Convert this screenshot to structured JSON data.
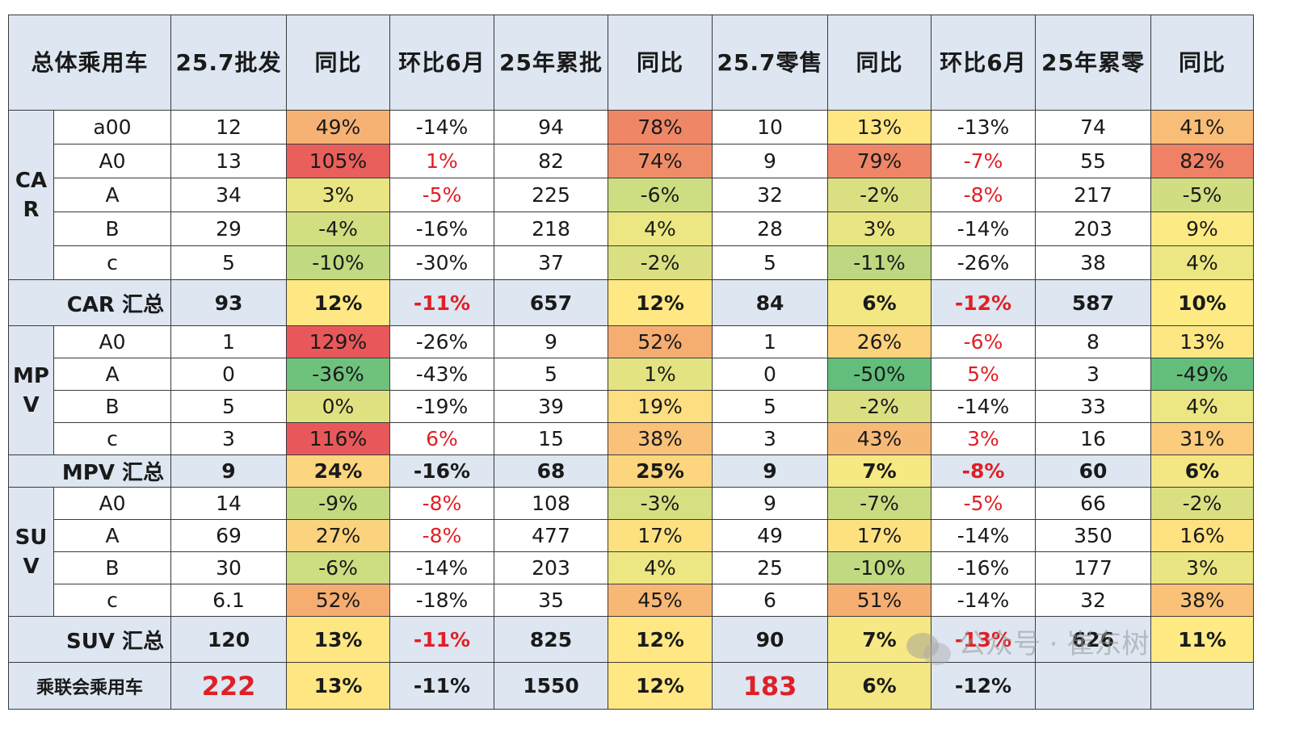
{
  "header": [
    "总体乘用车",
    "25.7批发",
    "同比",
    "环比6月",
    "25年累批",
    "同比",
    "25.7零售",
    "同比",
    "环比6月",
    "25年累零",
    "同比"
  ],
  "groups": [
    {
      "label": "CAR",
      "rows": [
        {
          "seg": "a00",
          "cells": [
            "12",
            "49%",
            "-14%",
            "94",
            "78%",
            "10",
            "13%",
            "-13%",
            "74",
            "41%"
          ]
        },
        {
          "seg": "A0",
          "cells": [
            "13",
            "105%",
            "1%",
            "82",
            "74%",
            "9",
            "79%",
            "-7%",
            "55",
            "82%"
          ]
        },
        {
          "seg": "A",
          "cells": [
            "34",
            "3%",
            "-5%",
            "225",
            "-6%",
            "32",
            "-2%",
            "-8%",
            "217",
            "-5%"
          ]
        },
        {
          "seg": "B",
          "cells": [
            "29",
            "-4%",
            "-16%",
            "218",
            "4%",
            "28",
            "3%",
            "-14%",
            "203",
            "9%"
          ]
        },
        {
          "seg": "c",
          "cells": [
            "5",
            "-10%",
            "-30%",
            "37",
            "-2%",
            "5",
            "-11%",
            "-26%",
            "38",
            "4%"
          ]
        }
      ],
      "total": {
        "label": "CAR 汇总",
        "cells": [
          "93",
          "12%",
          "-11%",
          "657",
          "12%",
          "84",
          "6%",
          "-12%",
          "587",
          "10%"
        ]
      }
    },
    {
      "label": "MPV",
      "rows": [
        {
          "seg": "A0",
          "cells": [
            "1",
            "129%",
            "-26%",
            "9",
            "52%",
            "1",
            "26%",
            "-6%",
            "8",
            "13%"
          ]
        },
        {
          "seg": "A",
          "cells": [
            "0",
            "-36%",
            "-43%",
            "5",
            "1%",
            "0",
            "-50%",
            "5%",
            "3",
            "-49%"
          ]
        },
        {
          "seg": "B",
          "cells": [
            "5",
            "0%",
            "-19%",
            "39",
            "19%",
            "5",
            "-2%",
            "-14%",
            "33",
            "4%"
          ]
        },
        {
          "seg": "c",
          "cells": [
            "3",
            "116%",
            "6%",
            "15",
            "38%",
            "3",
            "43%",
            "3%",
            "16",
            "31%"
          ]
        }
      ],
      "total": {
        "label": "MPV 汇总",
        "cells": [
          "9",
          "24%",
          "-16%",
          "68",
          "25%",
          "9",
          "7%",
          "-8%",
          "60",
          "6%"
        ]
      }
    },
    {
      "label": "SUV",
      "rows": [
        {
          "seg": "A0",
          "cells": [
            "14",
            "-9%",
            "-8%",
            "108",
            "-3%",
            "9",
            "-7%",
            "-5%",
            "66",
            "-2%"
          ]
        },
        {
          "seg": "A",
          "cells": [
            "69",
            "27%",
            "-8%",
            "477",
            "17%",
            "49",
            "17%",
            "-14%",
            "350",
            "16%"
          ]
        },
        {
          "seg": "B",
          "cells": [
            "30",
            "-6%",
            "-14%",
            "203",
            "4%",
            "25",
            "-10%",
            "-16%",
            "177",
            "3%"
          ]
        },
        {
          "seg": "c",
          "cells": [
            "6.1",
            "52%",
            "-18%",
            "35",
            "45%",
            "6",
            "51%",
            "-14%",
            "32",
            "38%"
          ]
        }
      ],
      "total": {
        "label": "SUV 汇总",
        "cells": [
          "120",
          "13%",
          "-11%",
          "825",
          "12%",
          "90",
          "7%",
          "-13%",
          "626",
          "11%"
        ]
      }
    }
  ],
  "grand_total": {
    "label": "乘联会乘用车",
    "cells": [
      "222",
      "13%",
      "-11%",
      "1550",
      "12%",
      "183",
      "6%",
      "-12%",
      "",
      ""
    ]
  },
  "watermark": "公众号 · 崔东树",
  "colors": {
    "header_bg": "#dde6f1",
    "negative_text": "#e01f26",
    "heat_high": "#e8585a",
    "heat_mid": "#ffeb84",
    "heat_low": "#63be7b"
  }
}
